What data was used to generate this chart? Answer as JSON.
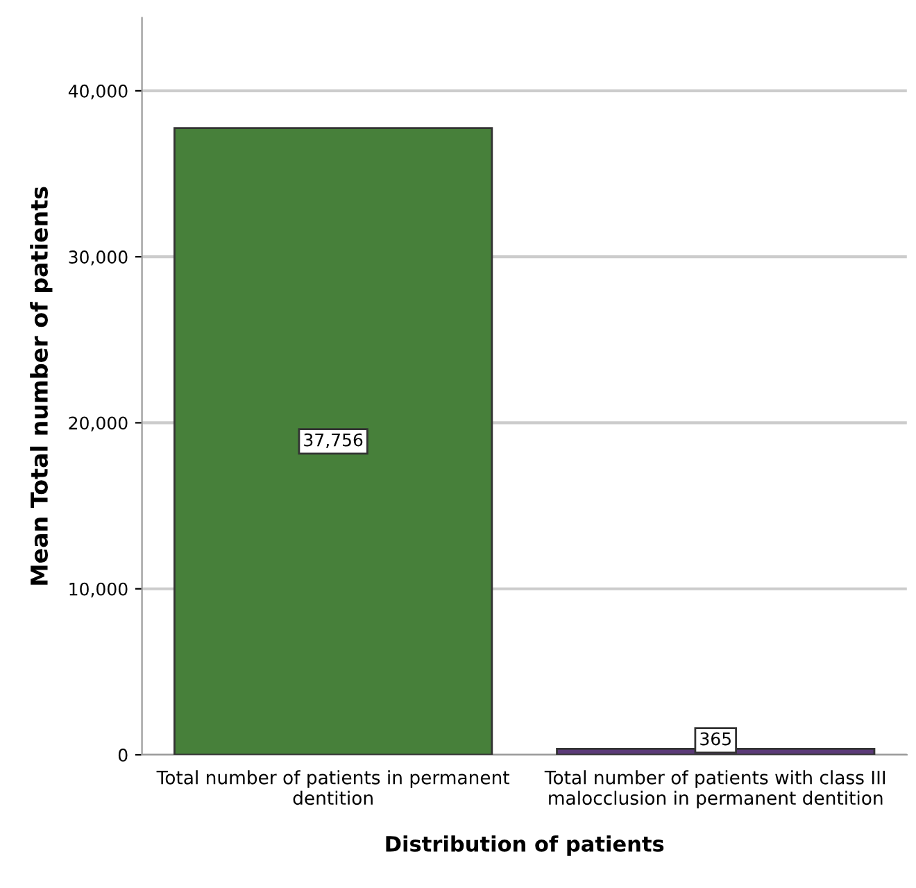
{
  "chart_data": {
    "type": "bar",
    "xlabel": "Distribution of patients",
    "ylabel": "Mean Total number of patients",
    "categories": [
      "Total number of patients in permanent\ndentition",
      "Total number of patients with class III\nmalocclusion in permanent dentition"
    ],
    "values": [
      37756,
      365
    ],
    "colors": [
      "#47803a",
      "#5b3a78"
    ],
    "value_labels": [
      "37,756",
      "365"
    ],
    "ylim": [
      0,
      44400
    ],
    "yticks": [
      {
        "value": 0,
        "label": "0"
      },
      {
        "value": 10000,
        "label": "10,000"
      },
      {
        "value": 20000,
        "label": "20,000"
      },
      {
        "value": 30000,
        "label": "30,000"
      },
      {
        "value": 40000,
        "label": "40,000"
      }
    ],
    "grid": "y"
  }
}
